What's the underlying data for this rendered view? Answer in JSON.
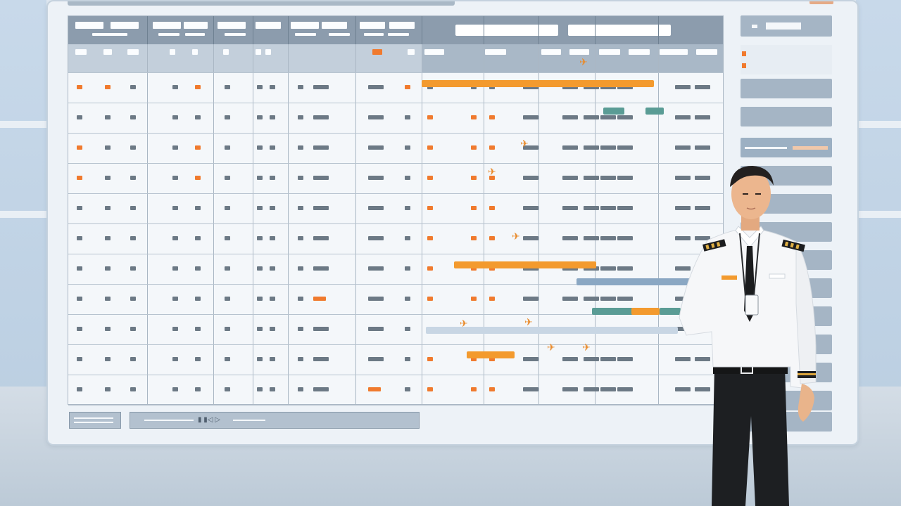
{
  "board": {
    "header_fields": [
      "",
      ""
    ],
    "footer": {
      "playback_label": "▮ ▮◁ ▷"
    }
  },
  "side_panel": {
    "legend": [
      {
        "label": "",
        "color": "#f07a2e"
      },
      {
        "label": "",
        "color": "#f07a2e"
      }
    ],
    "items": [
      "",
      "",
      "",
      "",
      "",
      "",
      "",
      "",
      "",
      "",
      "",
      "",
      ""
    ]
  },
  "colors": {
    "accent_orange": "#f39a2e",
    "header_dark": "#8c9cad",
    "bar_blue": "#8aa7c3",
    "bar_teal": "#5a9c95"
  },
  "icons": {
    "aircraft": "airplane-icon",
    "pilot": "pilot-figure"
  }
}
